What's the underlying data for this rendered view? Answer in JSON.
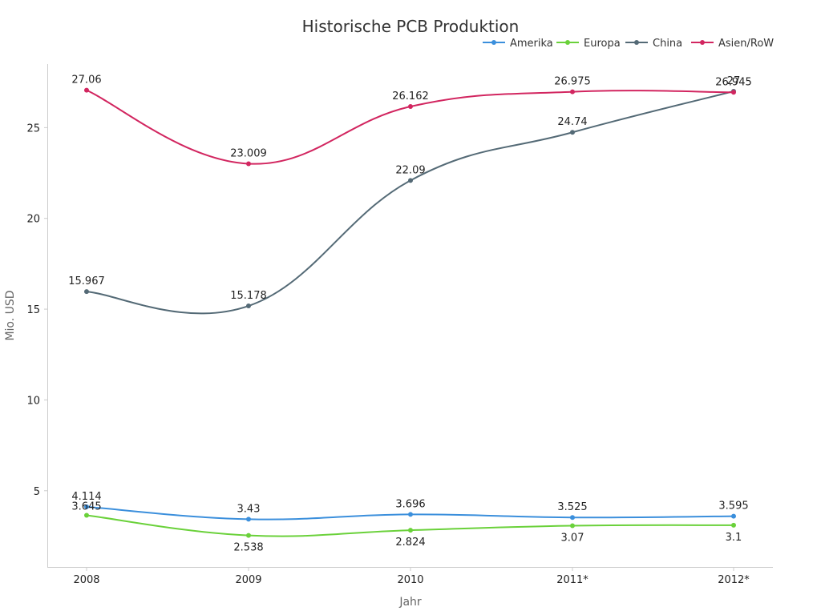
{
  "chart_data": {
    "type": "line",
    "title": "Historische PCB Produktion",
    "xlabel": "Jahr",
    "ylabel": "Mio. USD",
    "categories": [
      "2008",
      "2009",
      "2010",
      "2011*",
      "2012*"
    ],
    "ylim": [
      0.8,
      28.5
    ],
    "yticks": [
      5,
      10,
      15,
      20,
      25
    ],
    "legend_position": "top-right",
    "series": [
      {
        "name": "Amerika",
        "color": "#3b8fdc",
        "values": [
          4.114,
          3.43,
          3.696,
          3.525,
          3.595
        ]
      },
      {
        "name": "Europa",
        "color": "#6ad13a",
        "values": [
          3.645,
          2.538,
          2.824,
          3.07,
          3.1
        ]
      },
      {
        "name": "China",
        "color": "#546a76",
        "values": [
          15.967,
          15.178,
          22.09,
          24.74,
          27.0
        ]
      },
      {
        "name": "Asien/RoW",
        "color": "#d22660",
        "values": [
          27.06,
          23.009,
          26.162,
          26.975,
          26.945
        ]
      }
    ]
  }
}
